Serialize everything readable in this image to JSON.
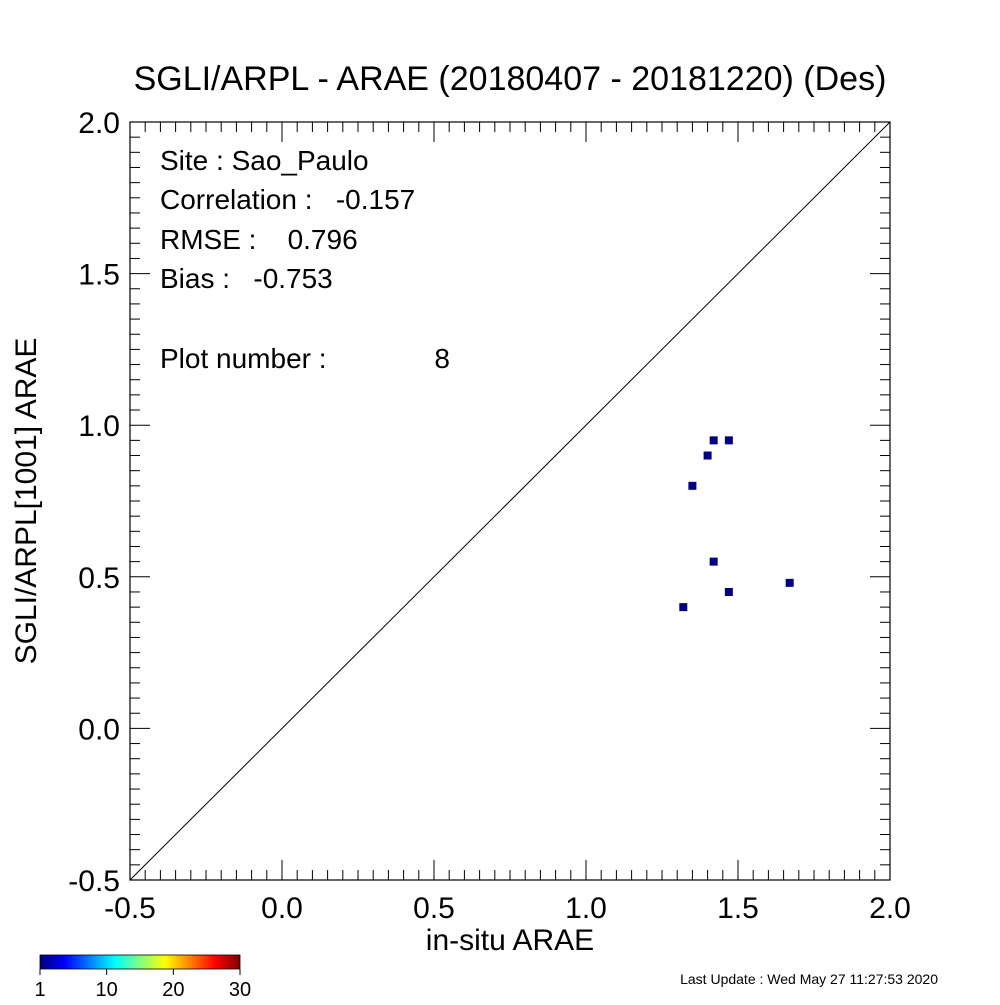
{
  "chart_data": {
    "type": "scatter",
    "title": "SGLI/ARPL - ARAE (20180407 - 20181220) (Des)",
    "xlabel": "in-situ ARAE",
    "ylabel": "SGLI/ARPL[1001]    ARAE",
    "xlim": [
      -0.5,
      2.0
    ],
    "ylim": [
      -0.5,
      2.0
    ],
    "x_ticks": [
      "-0.5",
      "0.0",
      "0.5",
      "1.0",
      "1.5",
      "2.0"
    ],
    "y_ticks": [
      "-0.5",
      "0.0",
      "0.5",
      "1.0",
      "1.5",
      "2.0"
    ],
    "reference_line": "1:1",
    "point_color": "#000080",
    "points": [
      {
        "x": 1.32,
        "y": 0.4
      },
      {
        "x": 1.35,
        "y": 0.8
      },
      {
        "x": 1.4,
        "y": 0.9
      },
      {
        "x": 1.42,
        "y": 0.95
      },
      {
        "x": 1.47,
        "y": 0.95
      },
      {
        "x": 1.42,
        "y": 0.55
      },
      {
        "x": 1.47,
        "y": 0.45
      },
      {
        "x": 1.67,
        "y": 0.48
      }
    ],
    "stats": {
      "site": "Site : Sao_Paulo",
      "correlation": "Correlation :   -0.157",
      "rmse": "RMSE :    0.796",
      "bias": "Bias :   -0.753",
      "plot_number_label": "Plot number :",
      "plot_number_value": "8"
    },
    "colorbar": {
      "colors": [
        "#00007f",
        "#0000ff",
        "#0080ff",
        "#00ffff",
        "#80ff80",
        "#ffff00",
        "#ff8000",
        "#ff0000",
        "#7f0000"
      ],
      "tick_labels": [
        "1",
        "10",
        "20",
        "30"
      ]
    },
    "footer": "Last Update : Wed May 27 11:27:53 2020"
  }
}
